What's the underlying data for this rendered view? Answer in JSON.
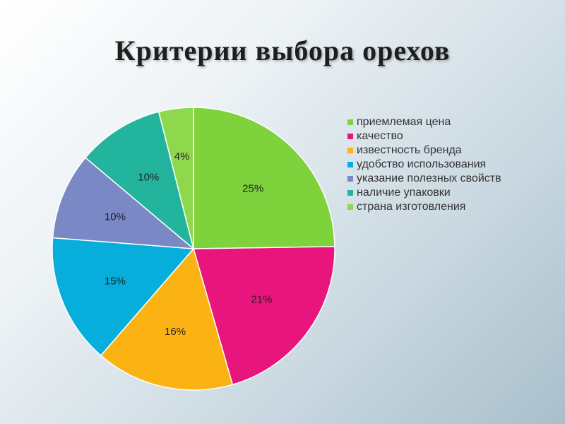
{
  "slide": {
    "title": "Критерии выбора орехов"
  },
  "chart_data": {
    "type": "pie",
    "title": "Критерии выбора орехов",
    "legend_position": "right",
    "slices": [
      {
        "label": "приемлемая цена",
        "value": 25,
        "value_label": "25%",
        "color": "#7ed23c"
      },
      {
        "label": "качество",
        "value": 21,
        "value_label": "21%",
        "color": "#e8157c"
      },
      {
        "label": "известность бренда",
        "value": 16,
        "value_label": "16%",
        "color": "#fbb314"
      },
      {
        "label": "удобство использования",
        "value": 15,
        "value_label": "15%",
        "color": "#07aedc"
      },
      {
        "label": "указание полезных свойств",
        "value": 10,
        "value_label": "10%",
        "color": "#7b88c6"
      },
      {
        "label": "наличие упаковки",
        "value": 10,
        "value_label": "10%",
        "color": "#22b49c"
      },
      {
        "label": "страна изготовления",
        "value": 4,
        "value_label": "4%",
        "color": "#8ed84e"
      }
    ]
  }
}
